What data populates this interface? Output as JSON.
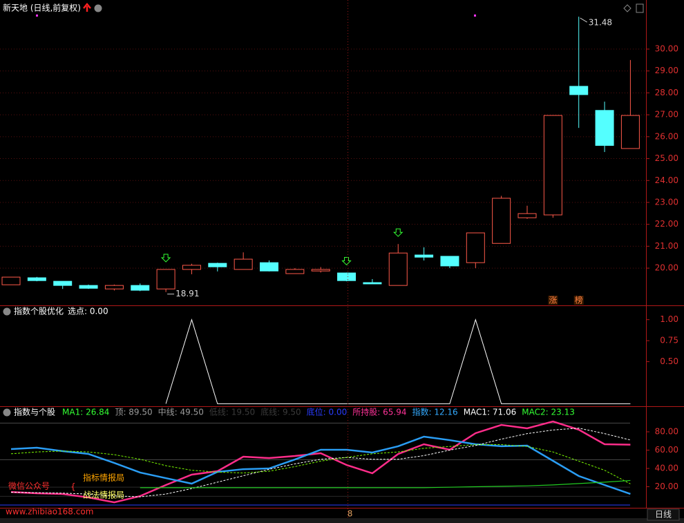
{
  "chart_data": [
    {
      "type": "candlestick",
      "title": "新天地 (日线,前复权)",
      "open": [
        19.24,
        19.56,
        19.4,
        19.21,
        19.05,
        19.21,
        19.05,
        19.94,
        20.22,
        19.94,
        20.25,
        19.75,
        19.87,
        19.78,
        19.34,
        19.21,
        20.6,
        20.54,
        20.25,
        21.13,
        22.3,
        22.43,
        28.3,
        27.2,
        25.46
      ],
      "high": [
        19.59,
        19.6,
        19.4,
        19.25,
        19.25,
        19.3,
        19.94,
        20.2,
        20.25,
        20.72,
        20.35,
        20.0,
        20.05,
        19.8,
        19.5,
        21.1,
        20.95,
        20.55,
        21.61,
        23.3,
        22.85,
        26.97,
        31.48,
        27.6,
        29.5
      ],
      "low": [
        19.24,
        19.4,
        19.05,
        19.05,
        18.98,
        18.95,
        18.91,
        19.72,
        19.85,
        19.94,
        19.85,
        19.75,
        19.8,
        19.4,
        19.28,
        19.21,
        20.35,
        20.0,
        20.0,
        21.13,
        22.25,
        22.3,
        26.4,
        25.3,
        25.46
      ],
      "close": [
        19.59,
        19.43,
        19.21,
        19.08,
        19.21,
        18.99,
        19.94,
        20.13,
        20.06,
        20.41,
        19.87,
        19.94,
        19.94,
        19.43,
        19.28,
        20.69,
        20.5,
        20.1,
        21.61,
        23.19,
        22.49,
        26.97,
        27.92,
        25.6,
        26.97
      ],
      "up_color": "#ff5a4a",
      "down_color": "#54ffff",
      "ylim": [
        18.3,
        32.24
      ],
      "yticks": [
        {
          "value": 20,
          "label": "20.00"
        },
        {
          "value": 21,
          "label": "21.00"
        },
        {
          "value": 22,
          "label": "22.00"
        },
        {
          "value": 23,
          "label": "23.00"
        },
        {
          "value": 24,
          "label": "24.00"
        },
        {
          "value": 25,
          "label": "25.00"
        },
        {
          "value": 26,
          "label": "26.00"
        },
        {
          "value": 27,
          "label": "27.00"
        },
        {
          "value": 28,
          "label": "28.00"
        },
        {
          "value": 29,
          "label": "29.00"
        },
        {
          "value": 30,
          "label": "30.00"
        }
      ],
      "grid": true,
      "max_label": 31.48,
      "min_label": 18.91,
      "buy_signal": [
        0,
        0,
        0,
        0,
        0,
        0,
        1,
        0,
        0,
        0,
        0,
        0,
        0,
        1,
        0,
        1,
        0,
        0,
        0,
        0,
        0,
        0,
        0,
        0,
        0
      ],
      "tags": [
        null,
        null,
        null,
        null,
        null,
        null,
        null,
        null,
        null,
        null,
        null,
        null,
        null,
        null,
        null,
        null,
        null,
        null,
        null,
        null,
        null,
        "涨",
        "榜",
        null,
        null
      ]
    },
    {
      "type": "line",
      "title": "指数个股优化",
      "legend": [
        "选点: 0.00"
      ],
      "series": [
        {
          "color": "#ffffff",
          "values": [
            null,
            null,
            null,
            null,
            null,
            null,
            0,
            1,
            0,
            0,
            0,
            0,
            0,
            0,
            0,
            0,
            0,
            0,
            1,
            0,
            0,
            0,
            0,
            0,
            0
          ]
        }
      ],
      "ylim": [
        -0.03,
        1.17
      ],
      "yticks": [
        {
          "value": 0.5,
          "label": "0.50"
        },
        {
          "value": 0.75,
          "label": "0.75"
        },
        {
          "value": 1,
          "label": "1.00"
        }
      ]
    },
    {
      "type": "line",
      "title": "指数与个股",
      "legend": [
        {
          "text": "MA1: 26.84",
          "color": "#33ff33"
        },
        {
          "text": "顶: 89.50",
          "color": "#9a9a9a"
        },
        {
          "text": "中线: 49.50",
          "color": "#9a9a9a"
        },
        {
          "text": "低线: 19.50",
          "color": "#3a3a3a"
        },
        {
          "text": "底线: 9.50",
          "color": "#3a3a3a"
        },
        {
          "text": "底位: 0.00",
          "color": "#2a3cff"
        },
        {
          "text": "所持股: 65.94",
          "color": "#ff3399"
        },
        {
          "text": "指数: 12.16",
          "color": "#33aaff"
        },
        {
          "text": "MAC1: 71.06",
          "color": "#ffffff"
        },
        {
          "text": "MAC2: 23.13",
          "color": "#33ff33"
        }
      ],
      "series": [
        {
          "color": "#ff2d8a",
          "width": 2.5,
          "dashed": false,
          "values": [
            14.3,
            12.8,
            12.1,
            8.3,
            3.0,
            9.8,
            21.9,
            33.2,
            37.0,
            52.8,
            51.3,
            53.6,
            56.6,
            43.8,
            34.7,
            55.8,
            66.4,
            60.4,
            78.5,
            87.5,
            83.8,
            91.3,
            82.3,
            66.4,
            65.94
          ]
        },
        {
          "color": "#2a9df4",
          "width": 2.5,
          "dashed": false,
          "values": [
            61.1,
            62.6,
            58.9,
            55.8,
            46.0,
            35.5,
            29.4,
            23.4,
            36.2,
            39.2,
            40.0,
            49.8,
            60.4,
            60.4,
            57.4,
            64.2,
            74.7,
            70.9,
            66.4,
            64.2,
            64.9,
            48.3,
            31.7,
            21.9,
            12.16
          ]
        },
        {
          "color": "#ffffff",
          "width": 1,
          "dashed": true,
          "values": [
            14.0,
            13.5,
            13.0,
            12.0,
            10.0,
            9.0,
            12.0,
            18.0,
            25.0,
            32.0,
            39.0,
            45.0,
            50.0,
            52.0,
            50.0,
            50.0,
            54.0,
            60.0,
            65.0,
            72.0,
            78.0,
            82.0,
            84.0,
            78.0,
            71.06
          ]
        },
        {
          "color": "#7cfc00",
          "width": 1,
          "dashed": true,
          "values": [
            56,
            58,
            59,
            58,
            55,
            50,
            43,
            38,
            36,
            35,
            37,
            42,
            48,
            52,
            56,
            58,
            62,
            64,
            66,
            66,
            64,
            58,
            48,
            38,
            23.13
          ]
        },
        {
          "color": "#22cc22",
          "width": 1.2,
          "dashed": false,
          "values": [
            null,
            null,
            null,
            null,
            null,
            19,
            19,
            19,
            19,
            19,
            19,
            19,
            19,
            19,
            19,
            19,
            19,
            19.5,
            20,
            20.5,
            21,
            22,
            23.5,
            25,
            26.84
          ]
        }
      ],
      "hlines": [
        {
          "value": 89.5,
          "color": "#4a4a4a"
        },
        {
          "value": 49.5,
          "color": "#4a4a4a"
        },
        {
          "value": 19.5,
          "color": "#2a2a2a"
        },
        {
          "value": 9.5,
          "color": "#2a2a2a"
        },
        {
          "value": 0,
          "color": "#2a3cff"
        }
      ],
      "ylim": [
        -3,
        106.4
      ],
      "yticks": [
        {
          "value": 20,
          "label": "20.00"
        },
        {
          "value": 40,
          "label": "40.00"
        },
        {
          "value": 60,
          "label": "60.00"
        },
        {
          "value": 80,
          "label": "80.00"
        }
      ],
      "categories": [
        null,
        null,
        null,
        null,
        null,
        null,
        null,
        null,
        null,
        null,
        null,
        null,
        null,
        "8",
        null,
        null,
        null,
        null,
        null,
        null,
        null,
        null,
        null,
        null,
        null
      ]
    }
  ],
  "toolbar": {
    "period": "日线"
  },
  "watermark": {
    "line1": "微信公众号",
    "line2a": "指标情报局",
    "line2b": "战法情报局",
    "url": "www.zhibiao168.com"
  }
}
